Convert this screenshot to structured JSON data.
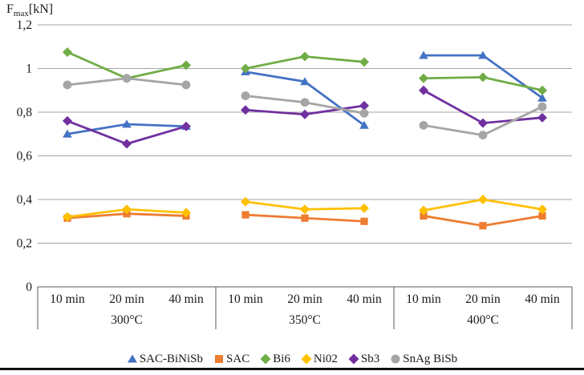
{
  "y_axis_title": {
    "prefix": "F",
    "sub": "max",
    "suffix": "[kN]"
  },
  "chart_data": {
    "type": "line",
    "title": "",
    "ylabel": "Fmax[kN]",
    "xlabel": "",
    "ylim": [
      0,
      1.2
    ],
    "y_tick_step": 0.2,
    "y_tick_labels": [
      "0",
      "0,2",
      "0,4",
      "0,6",
      "0,8",
      "1",
      "1,2"
    ],
    "grid": true,
    "legend_position": "bottom",
    "group_labels": [
      "300°C",
      "350°C",
      "400°C"
    ],
    "categories_per_group": [
      "10 min",
      "20 min",
      "40 min"
    ],
    "series": [
      {
        "name": "SAC-BiNiSb",
        "color": "#4472C4",
        "marker": "triangle",
        "values_by_group": [
          [
            0.7,
            0.745,
            0.735
          ],
          [
            0.985,
            0.94,
            0.74
          ],
          [
            1.06,
            1.06,
            0.865
          ]
        ]
      },
      {
        "name": "SAC",
        "color": "#ED7D31",
        "marker": "square",
        "values_by_group": [
          [
            0.315,
            0.335,
            0.325
          ],
          [
            0.33,
            0.315,
            0.3
          ],
          [
            0.325,
            0.28,
            0.325
          ]
        ]
      },
      {
        "name": "Bi6",
        "color": "#70AD47",
        "marker": "diamond",
        "values_by_group": [
          [
            1.075,
            0.955,
            1.015
          ],
          [
            1.0,
            1.055,
            1.03
          ],
          [
            0.955,
            0.96,
            0.9
          ]
        ]
      },
      {
        "name": "Ni02",
        "color": "#FFC000",
        "marker": "diamond",
        "values_by_group": [
          [
            0.32,
            0.355,
            0.34
          ],
          [
            0.39,
            0.355,
            0.36
          ],
          [
            0.35,
            0.4,
            0.355
          ]
        ]
      },
      {
        "name": "Sb3",
        "color": "#7030A0",
        "marker": "diamond",
        "values_by_group": [
          [
            0.76,
            0.655,
            0.735
          ],
          [
            0.81,
            0.79,
            0.83
          ],
          [
            0.9,
            0.75,
            0.775
          ]
        ]
      },
      {
        "name": "SnAg BiSb",
        "color": "#A5A5A5",
        "marker": "circle",
        "values_by_group": [
          [
            0.925,
            0.955,
            0.925
          ],
          [
            0.875,
            0.845,
            0.795
          ],
          [
            0.74,
            0.695,
            0.825
          ]
        ]
      }
    ],
    "colors": {
      "gridline": "#a6a6a6",
      "axis_line": "#595959",
      "text": "#1a1a1a"
    }
  }
}
